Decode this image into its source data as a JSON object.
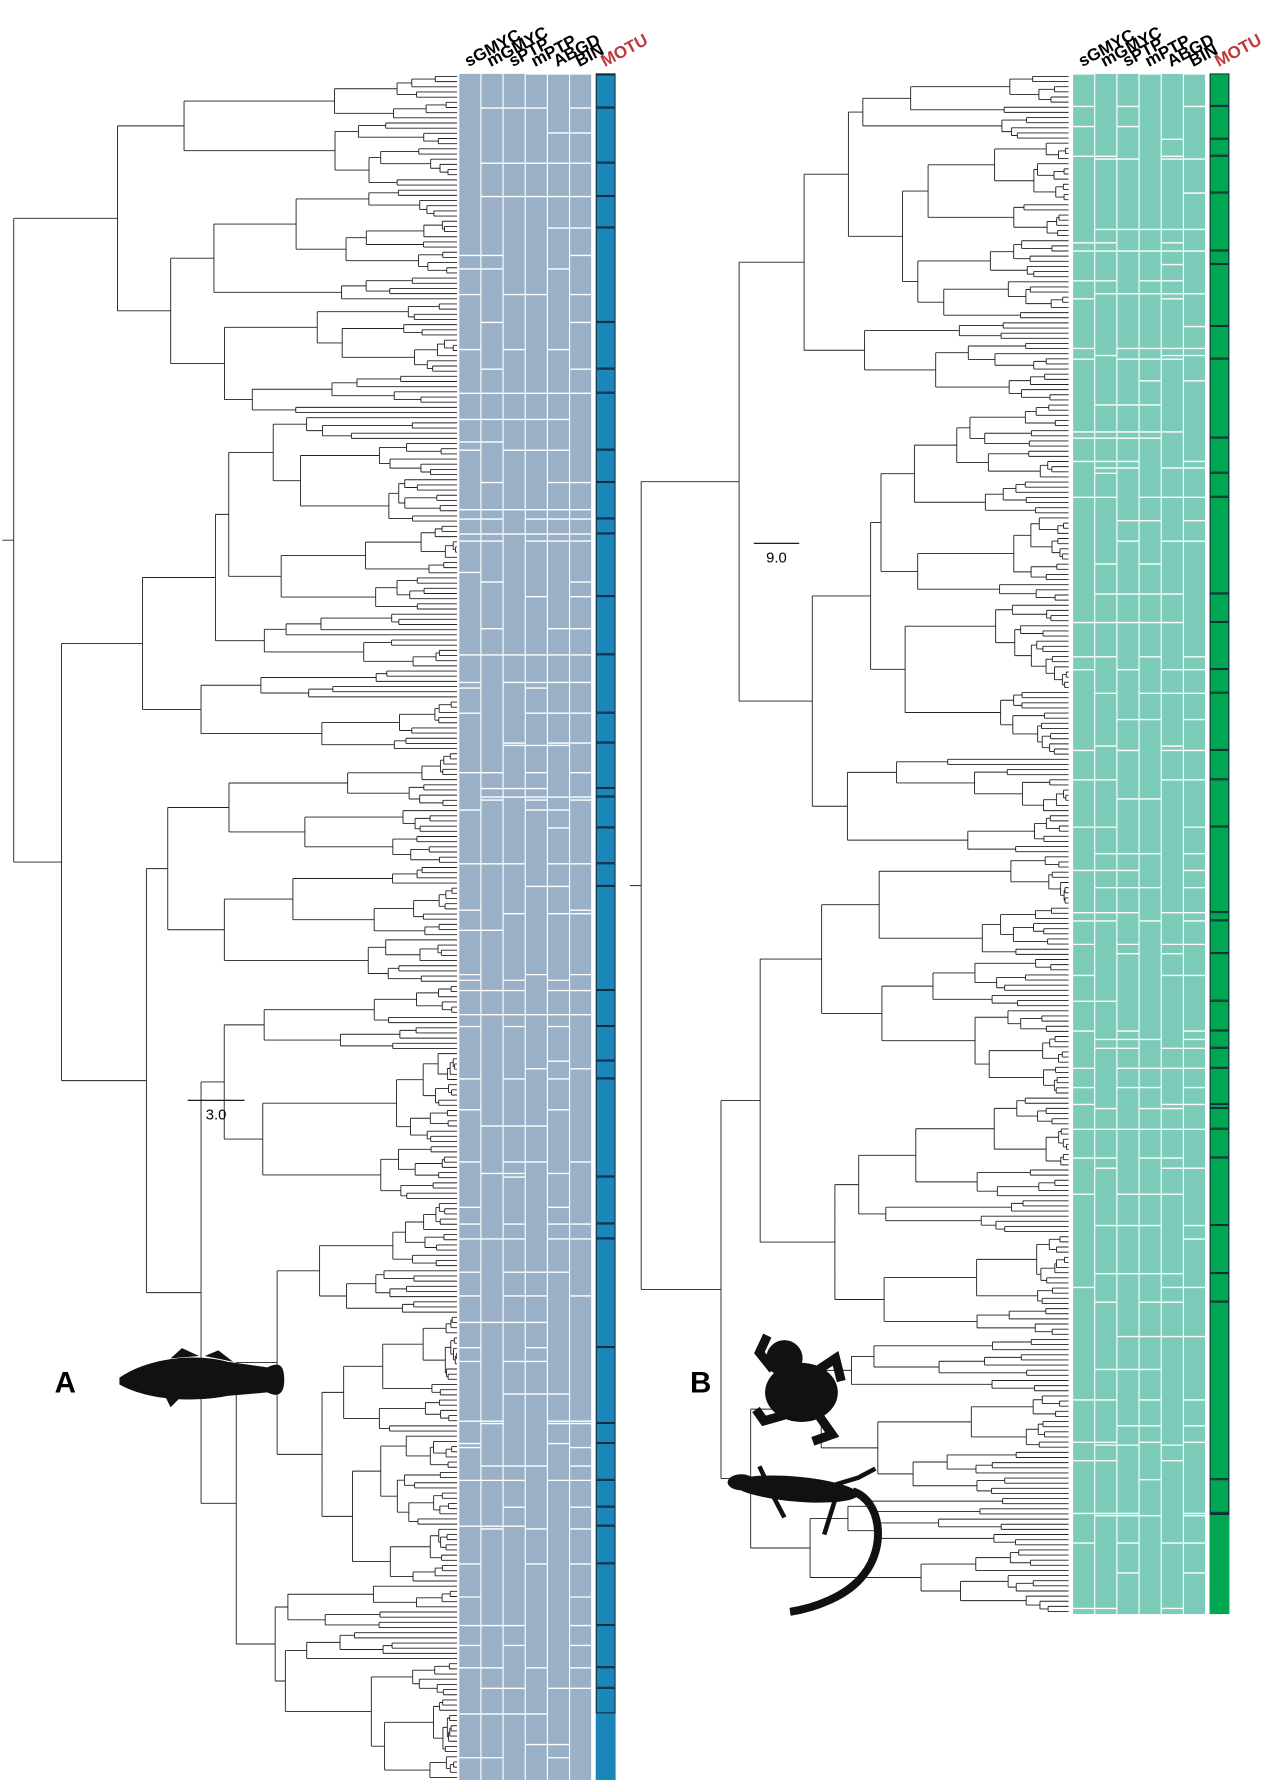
{
  "panel_a": {
    "label": "A",
    "scale_label": "3.0",
    "columns": [
      "sGMYC",
      "mGMYC",
      "sPTP",
      "mPTP",
      "ABGD",
      "BIN"
    ],
    "motu": "MOTU"
  },
  "panel_b": {
    "label": "B",
    "scale_label": "9.0",
    "columns": [
      "sGMYC",
      "mGMYC",
      "sPTP",
      "mPTP",
      "ABGD",
      "BIN"
    ],
    "motu": "MOTU"
  }
}
